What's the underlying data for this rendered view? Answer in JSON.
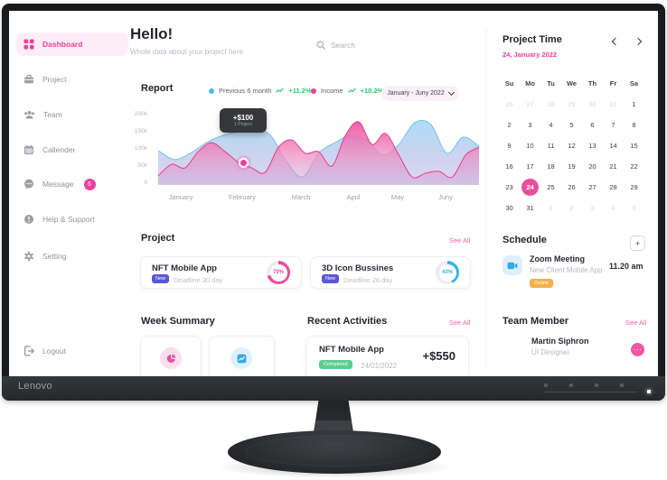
{
  "monitor": {
    "brand": "Lenovo"
  },
  "sidebar": {
    "items": [
      {
        "label": "Dashboard",
        "icon": "dashboard-icon",
        "active": true
      },
      {
        "label": "Project",
        "icon": "briefcase-icon"
      },
      {
        "label": "Team",
        "icon": "team-icon"
      },
      {
        "label": "Callender",
        "icon": "calendar-icon"
      },
      {
        "label": "Message",
        "icon": "message-icon",
        "badge": "6"
      },
      {
        "label": "Help & Support",
        "icon": "help-icon"
      },
      {
        "label": "Setting",
        "icon": "gear-icon"
      }
    ],
    "logout_label": "Logout"
  },
  "header": {
    "greeting": "Hello!",
    "subtitle": "Whole data about your project here",
    "search_placeholder": "Search"
  },
  "report": {
    "title": "Report",
    "legend": [
      {
        "label": "Previous 6 month",
        "delta": "+11.2%",
        "color": "#55b6e8"
      },
      {
        "label": "Income",
        "delta": "+10.2%",
        "color": "#ee3f9b"
      }
    ],
    "range_label": "January - Juny 2022",
    "tooltip": {
      "value": "+$100",
      "sub": "1 Project"
    }
  },
  "chart_data": {
    "type": "area",
    "x": [
      "January",
      "February",
      "March",
      "April",
      "May",
      "Juny"
    ],
    "yticks": [
      "250k",
      "150k",
      "100k",
      "50k",
      "0"
    ],
    "ylim": [
      0,
      250
    ],
    "unit": "k",
    "series": [
      {
        "name": "Previous 6 month",
        "color": "#55b6e8",
        "values": [
          95,
          69,
          87,
          118,
          139,
          150,
          161,
          139,
          63,
          21,
          87,
          118,
          139,
          126,
          82,
          113,
          203,
          192,
          87,
          134,
          108
        ]
      },
      {
        "name": "Income",
        "color": "#ee3f9b",
        "values": [
          24,
          55,
          45,
          92,
          118,
          92,
          61,
          45,
          33,
          105,
          126,
          87,
          92,
          50,
          139,
          208,
          113,
          145,
          82,
          21,
          31,
          36,
          21,
          82,
          105
        ]
      }
    ]
  },
  "projects": {
    "title": "Project",
    "see_all": "See All",
    "cards": [
      {
        "title": "NFT Mobile App",
        "badge": "New",
        "deadline": "Deadline 30 day",
        "percent": 70,
        "percent_label": "70%",
        "color": "#e8509d"
      },
      {
        "title": "3D Icon Bussines",
        "badge": "New",
        "deadline": "Deadline 26 day",
        "percent": 43,
        "percent_label": "43%",
        "color": "#38b3ea"
      }
    ]
  },
  "week_summary": {
    "title": "Week Summary"
  },
  "recent": {
    "title": "Recent Activities",
    "see_all": "See All",
    "item": {
      "title": "NFT Mobile App",
      "badge": "Completed",
      "date": "24/01/2022",
      "amount": "+$550"
    }
  },
  "calendar": {
    "title": "Project Time",
    "current": "24, January 2022",
    "day_headers": [
      "Su",
      "Mo",
      "Tu",
      "We",
      "Th",
      "Fr",
      "Sa"
    ],
    "cells": [
      {
        "d": "26",
        "state": "muted"
      },
      {
        "d": "27",
        "state": "muted"
      },
      {
        "d": "28",
        "state": "muted"
      },
      {
        "d": "29",
        "state": "muted"
      },
      {
        "d": "30",
        "state": "muted"
      },
      {
        "d": "31",
        "state": "muted"
      },
      {
        "d": "1",
        "state": ""
      },
      {
        "d": "2",
        "state": ""
      },
      {
        "d": "3",
        "state": ""
      },
      {
        "d": "4",
        "state": ""
      },
      {
        "d": "5",
        "state": ""
      },
      {
        "d": "6",
        "state": ""
      },
      {
        "d": "7",
        "state": ""
      },
      {
        "d": "8",
        "state": ""
      },
      {
        "d": "9",
        "state": ""
      },
      {
        "d": "10",
        "state": ""
      },
      {
        "d": "11",
        "state": ""
      },
      {
        "d": "12",
        "state": ""
      },
      {
        "d": "13",
        "state": ""
      },
      {
        "d": "14",
        "state": ""
      },
      {
        "d": "15",
        "state": ""
      },
      {
        "d": "16",
        "state": ""
      },
      {
        "d": "17",
        "state": ""
      },
      {
        "d": "18",
        "state": ""
      },
      {
        "d": "19",
        "state": ""
      },
      {
        "d": "20",
        "state": ""
      },
      {
        "d": "21",
        "state": ""
      },
      {
        "d": "22",
        "state": ""
      },
      {
        "d": "23",
        "state": ""
      },
      {
        "d": "24",
        "state": "selected"
      },
      {
        "d": "25",
        "state": ""
      },
      {
        "d": "26",
        "state": ""
      },
      {
        "d": "27",
        "state": ""
      },
      {
        "d": "28",
        "state": ""
      },
      {
        "d": "29",
        "state": ""
      },
      {
        "d": "30",
        "state": ""
      },
      {
        "d": "31",
        "state": ""
      },
      {
        "d": "1",
        "state": "muted"
      },
      {
        "d": "2",
        "state": "muted"
      },
      {
        "d": "3",
        "state": "muted"
      },
      {
        "d": "4",
        "state": "muted"
      },
      {
        "d": "5",
        "state": "muted"
      }
    ]
  },
  "schedule": {
    "title": "Schedule",
    "item": {
      "title": "Zoom Meeting",
      "subtitle": "New Client Mobile App",
      "badge": "Online",
      "time": "11.20 am"
    }
  },
  "team": {
    "title": "Team Member",
    "see_all": "See All",
    "member": {
      "name": "Martin Siphron",
      "role": "UI Designer"
    }
  }
}
